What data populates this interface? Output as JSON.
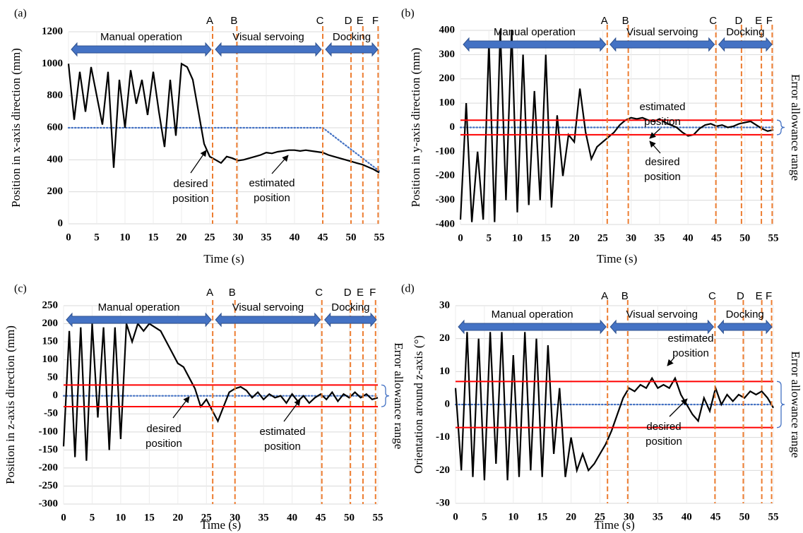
{
  "chart_data": [
    {
      "type": "line",
      "panel": "(a)",
      "ylabel": "Position in  x-axis direction (mm)",
      "xlabel": "Time (s)",
      "xlim": [
        0,
        55
      ],
      "xticks": [
        0,
        5,
        10,
        15,
        20,
        25,
        30,
        35,
        40,
        45,
        50,
        55
      ],
      "ylim": [
        0,
        1200
      ],
      "yticks": [
        0,
        200,
        400,
        600,
        800,
        1000,
        1200
      ],
      "grid": true,
      "x": [
        0,
        1,
        2,
        3,
        4,
        5,
        6,
        7,
        8,
        9,
        10,
        11,
        12,
        13,
        14,
        15,
        16,
        17,
        18,
        19,
        20,
        21,
        22,
        23,
        24,
        25,
        26,
        27,
        28,
        29,
        30,
        31,
        32,
        33,
        34,
        35,
        36,
        37,
        38,
        39,
        40,
        41,
        42,
        43,
        44,
        45,
        46,
        47,
        48,
        49,
        50,
        51,
        52,
        53,
        54,
        55
      ],
      "series": [
        {
          "color": "#000000",
          "values": [
            1000,
            650,
            950,
            700,
            980,
            800,
            620,
            950,
            350,
            900,
            600,
            960,
            750,
            900,
            680,
            950,
            700,
            480,
            900,
            550,
            1000,
            980,
            900,
            700,
            500,
            420,
            400,
            380,
            420,
            410,
            395,
            400,
            410,
            420,
            430,
            445,
            440,
            450,
            455,
            460,
            460,
            455,
            460,
            455,
            450,
            445,
            430,
            420,
            410,
            400,
            390,
            380,
            370,
            355,
            340,
            320
          ]
        },
        {
          "color": "#4472c4",
          "style": "dotted",
          "values": [
            600,
            600,
            600,
            600,
            600,
            600,
            600,
            600,
            600,
            600,
            600,
            600,
            600,
            600,
            600,
            600,
            600,
            600,
            600,
            600,
            600,
            600,
            600,
            600,
            600,
            600,
            600,
            600,
            600,
            600,
            600,
            600,
            600,
            600,
            600,
            600,
            600,
            600,
            600,
            600,
            600,
            600,
            600,
            600,
            600,
            600,
            573,
            546,
            519,
            492,
            465,
            438,
            411,
            384,
            357,
            330
          ]
        }
      ],
      "phases": [
        {
          "label": "A",
          "x": 25.5
        },
        {
          "label": "B",
          "x": 29.8
        },
        {
          "label": "C",
          "x": 45
        },
        {
          "label": "D",
          "x": 50
        },
        {
          "label": "E",
          "x": 52.1
        },
        {
          "label": "F",
          "x": 54.8
        }
      ],
      "stages": [
        {
          "label": "Manual operation",
          "start": 0,
          "end": 25.5
        },
        {
          "label": "Visual servoing",
          "start": 25.5,
          "end": 45
        },
        {
          "label": "Docking",
          "start": 45,
          "end": 55
        }
      ],
      "annotations": [
        {
          "lines": [
            "desired",
            "position"
          ]
        },
        {
          "lines": [
            "estimated",
            "position"
          ]
        }
      ]
    },
    {
      "type": "line",
      "panel": "(b)",
      "ylabel": "Position in y-axis direction (mm)",
      "xlabel": "Time (s)",
      "xlim": [
        0,
        55
      ],
      "xticks": [
        0,
        5,
        10,
        15,
        20,
        25,
        30,
        35,
        40,
        45,
        50,
        55
      ],
      "ylim": [
        -400,
        400
      ],
      "yticks": [
        -400,
        -300,
        -200,
        -100,
        0,
        100,
        200,
        300,
        400
      ],
      "grid": true,
      "x": [
        0,
        1,
        2,
        3,
        4,
        5,
        6,
        7,
        8,
        9,
        10,
        11,
        12,
        13,
        14,
        15,
        16,
        17,
        18,
        19,
        20,
        21,
        22,
        23,
        24,
        25,
        26,
        27,
        28,
        29,
        30,
        31,
        32,
        33,
        34,
        35,
        36,
        37,
        38,
        39,
        40,
        41,
        42,
        43,
        44,
        45,
        46,
        47,
        48,
        49,
        50,
        51,
        52,
        53,
        54,
        55
      ],
      "series": [
        {
          "color": "#000000",
          "values": [
            -380,
            100,
            -390,
            -100,
            -380,
            350,
            -390,
            400,
            -300,
            400,
            -350,
            300,
            -320,
            150,
            -300,
            300,
            -330,
            50,
            -200,
            -30,
            -60,
            160,
            -20,
            -130,
            -80,
            -60,
            -40,
            -20,
            10,
            30,
            40,
            35,
            40,
            30,
            25,
            35,
            20,
            10,
            0,
            -20,
            -35,
            -30,
            -5,
            10,
            15,
            5,
            10,
            0,
            5,
            15,
            20,
            25,
            10,
            -5,
            -15,
            -10
          ]
        },
        {
          "color": "#4472c4",
          "style": "dotted",
          "values": [
            0,
            0,
            0,
            0,
            0,
            0,
            0,
            0,
            0,
            0,
            0,
            0,
            0,
            0,
            0,
            0,
            0,
            0,
            0,
            0,
            0,
            0,
            0,
            0,
            0,
            0,
            0,
            0,
            0,
            0,
            0,
            0,
            0,
            0,
            0,
            0,
            0,
            0,
            0,
            0,
            0,
            0,
            0,
            0,
            0,
            0,
            0,
            0,
            0,
            0,
            0,
            0,
            0,
            0,
            0,
            0
          ]
        }
      ],
      "error_bounds": [
        30,
        -30
      ],
      "error_color": "#ff0000",
      "error_label": "Error allowance range",
      "phases": [
        {
          "label": "A",
          "x": 25.8
        },
        {
          "label": "B",
          "x": 29.5
        },
        {
          "label": "C",
          "x": 44.9
        },
        {
          "label": "D",
          "x": 49.4
        },
        {
          "label": "E",
          "x": 52.9
        },
        {
          "label": "F",
          "x": 54.8
        }
      ],
      "stages": [
        {
          "label": "Manual operation",
          "start": 0,
          "end": 25.8
        },
        {
          "label": "Visual servoing",
          "start": 25.8,
          "end": 44.9
        },
        {
          "label": "Docking",
          "start": 44.9,
          "end": 55
        }
      ],
      "annotations": [
        {
          "lines": [
            "estimated",
            "position"
          ]
        },
        {
          "lines": [
            "desired",
            "position"
          ]
        }
      ]
    },
    {
      "type": "line",
      "panel": "(c)",
      "ylabel": "Position in  z-axis direction (mm)",
      "xlabel": "Time (s)",
      "xlim": [
        0,
        55
      ],
      "xticks": [
        0,
        5,
        10,
        15,
        20,
        25,
        30,
        35,
        40,
        45,
        50,
        55
      ],
      "ylim": [
        -300,
        250
      ],
      "yticks": [
        -300,
        -250,
        -200,
        -150,
        -100,
        -50,
        0,
        50,
        100,
        150,
        200,
        250
      ],
      "grid": true,
      "x": [
        0,
        1,
        2,
        3,
        4,
        5,
        6,
        7,
        8,
        9,
        10,
        11,
        12,
        13,
        14,
        15,
        16,
        17,
        18,
        19,
        20,
        21,
        22,
        23,
        24,
        25,
        26,
        27,
        28,
        29,
        30,
        31,
        32,
        33,
        34,
        35,
        36,
        37,
        38,
        39,
        40,
        41,
        42,
        43,
        44,
        45,
        46,
        47,
        48,
        49,
        50,
        51,
        52,
        53,
        54,
        55
      ],
      "series": [
        {
          "color": "#000000",
          "values": [
            -140,
            180,
            -170,
            190,
            -180,
            200,
            -60,
            190,
            -150,
            190,
            -120,
            200,
            150,
            200,
            180,
            200,
            190,
            180,
            150,
            120,
            90,
            80,
            50,
            20,
            -30,
            -10,
            -40,
            -70,
            -30,
            10,
            20,
            25,
            15,
            -5,
            10,
            -10,
            5,
            -5,
            0,
            -20,
            5,
            -15,
            0,
            -20,
            -5,
            5,
            -10,
            10,
            -15,
            5,
            -5,
            10,
            -5,
            5,
            -10,
            -5
          ]
        },
        {
          "color": "#4472c4",
          "style": "dotted",
          "values": [
            0,
            0,
            0,
            0,
            0,
            0,
            0,
            0,
            0,
            0,
            0,
            0,
            0,
            0,
            0,
            0,
            0,
            0,
            0,
            0,
            0,
            0,
            0,
            0,
            0,
            0,
            0,
            0,
            0,
            0,
            0,
            0,
            0,
            0,
            0,
            0,
            0,
            0,
            0,
            0,
            0,
            0,
            0,
            0,
            0,
            0,
            0,
            0,
            0,
            0,
            0,
            0,
            0,
            0,
            0,
            0
          ]
        }
      ],
      "error_bounds": [
        30,
        -30
      ],
      "error_color": "#ff0000",
      "error_label": "Error allowance range",
      "phases": [
        {
          "label": "A",
          "x": 26.1
        },
        {
          "label": "B",
          "x": 30
        },
        {
          "label": "C",
          "x": 45.2
        },
        {
          "label": "D",
          "x": 50.2
        },
        {
          "label": "E",
          "x": 52.4
        },
        {
          "label": "F",
          "x": 54.6
        }
      ],
      "stages": [
        {
          "label": "Manual operation",
          "start": 0,
          "end": 26.1
        },
        {
          "label": "Visual servoing",
          "start": 26.1,
          "end": 45.2
        },
        {
          "label": "Docking",
          "start": 45.2,
          "end": 55
        }
      ],
      "annotations": [
        {
          "lines": [
            "desired",
            "position"
          ]
        },
        {
          "lines": [
            "estimated",
            "position"
          ]
        }
      ]
    },
    {
      "type": "line",
      "panel": "(d)",
      "ylabel": "Orientation around  z-axis (°)",
      "xlabel": "Time (s)",
      "xlim": [
        0,
        55
      ],
      "xticks": [
        0,
        5,
        10,
        15,
        20,
        25,
        30,
        35,
        40,
        45,
        50,
        55
      ],
      "ylim": [
        -30,
        30
      ],
      "yticks": [
        -30,
        -20,
        -10,
        0,
        10,
        20,
        30
      ],
      "grid": true,
      "x": [
        0,
        1,
        2,
        3,
        4,
        5,
        6,
        7,
        8,
        9,
        10,
        11,
        12,
        13,
        14,
        15,
        16,
        17,
        18,
        19,
        20,
        21,
        22,
        23,
        24,
        25,
        26,
        27,
        28,
        29,
        30,
        31,
        32,
        33,
        34,
        35,
        36,
        37,
        38,
        39,
        40,
        41,
        42,
        43,
        44,
        45,
        46,
        47,
        48,
        49,
        50,
        51,
        52,
        53,
        54,
        55
      ],
      "series": [
        {
          "color": "#000000",
          "values": [
            5,
            -20,
            22,
            -22,
            20,
            -23,
            22,
            -18,
            22,
            -23,
            15,
            -22,
            22,
            -20,
            20,
            -22,
            18,
            -15,
            5,
            -22,
            -10,
            -20,
            -15,
            -20,
            -18,
            -15,
            -12,
            -8,
            -3,
            2,
            5,
            4,
            6,
            5,
            8,
            5,
            6,
            5,
            8,
            3,
            0,
            -3,
            -5,
            2,
            -2,
            5,
            0,
            3,
            1,
            3,
            2,
            4,
            3,
            4,
            2,
            -1
          ]
        },
        {
          "color": "#4472c4",
          "style": "dotted",
          "values": [
            0,
            0,
            0,
            0,
            0,
            0,
            0,
            0,
            0,
            0,
            0,
            0,
            0,
            0,
            0,
            0,
            0,
            0,
            0,
            0,
            0,
            0,
            0,
            0,
            0,
            0,
            0,
            0,
            0,
            0,
            0,
            0,
            0,
            0,
            0,
            0,
            0,
            0,
            0,
            0,
            0,
            0,
            0,
            0,
            0,
            0,
            0,
            0,
            0,
            0,
            0,
            0,
            0,
            0,
            0,
            0
          ]
        }
      ],
      "error_bounds": [
        7,
        -7
      ],
      "error_color": "#ff0000",
      "error_label": "Error allowance range",
      "phases": [
        {
          "label": "A",
          "x": 26.3
        },
        {
          "label": "B",
          "x": 29.8
        },
        {
          "label": "C",
          "x": 44.9
        },
        {
          "label": "D",
          "x": 49.8
        },
        {
          "label": "E",
          "x": 53
        },
        {
          "label": "F",
          "x": 54.7
        }
      ],
      "stages": [
        {
          "label": "Manual operation",
          "start": 0,
          "end": 26.3
        },
        {
          "label": "Visual servoing",
          "start": 26.3,
          "end": 44.9
        },
        {
          "label": "Docking",
          "start": 44.9,
          "end": 55
        }
      ],
      "annotations": [
        {
          "lines": [
            "estimated",
            "position"
          ]
        },
        {
          "lines": [
            "desired",
            "position"
          ]
        }
      ]
    }
  ]
}
